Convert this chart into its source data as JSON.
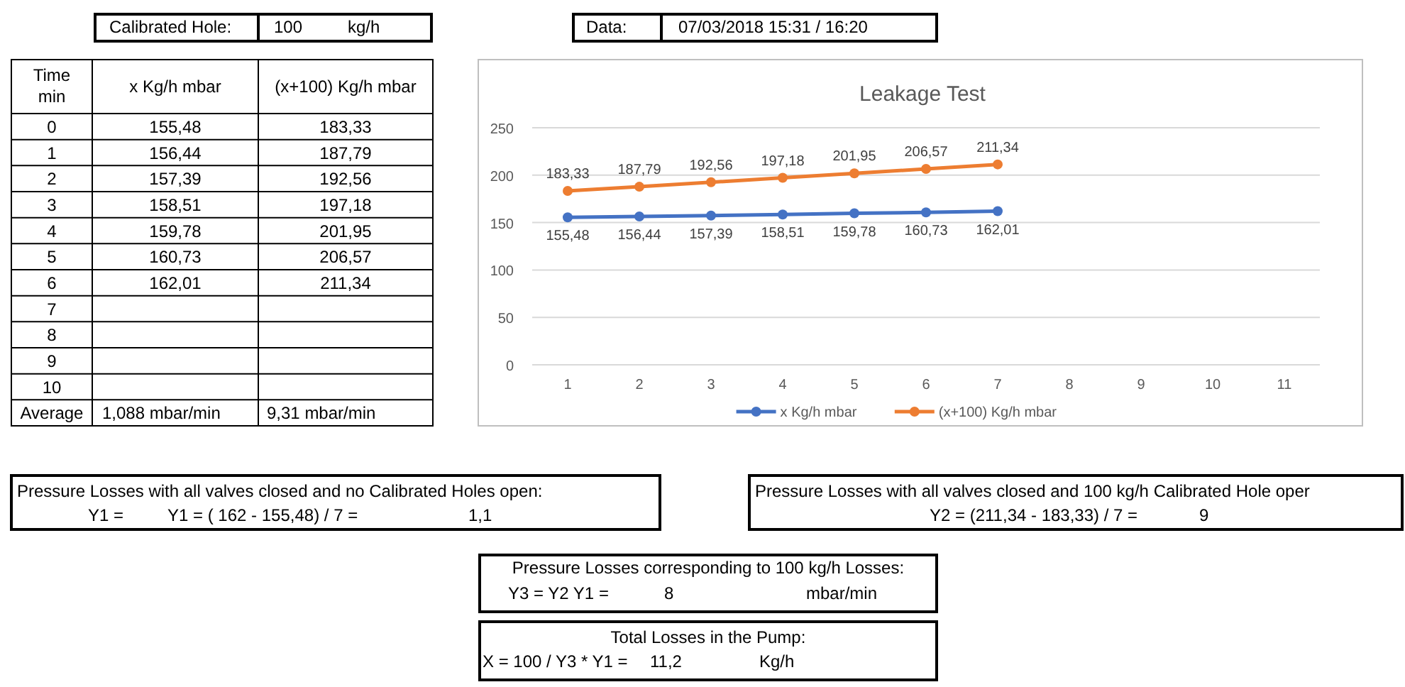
{
  "chart_data": {
    "type": "line",
    "title": "Leakage Test",
    "categories": [
      "1",
      "2",
      "3",
      "4",
      "5",
      "6",
      "7",
      "8",
      "9",
      "10",
      "11"
    ],
    "series": [
      {
        "name": "x Kg/h mbar",
        "color": "#4472c4",
        "values": [
          155.48,
          156.44,
          157.39,
          158.51,
          159.78,
          160.73,
          162.01,
          null,
          null,
          null,
          null
        ],
        "value_labels": [
          "155,48",
          "156,44",
          "157,39",
          "158,51",
          "159,78",
          "160,73",
          "162,01",
          null,
          null,
          null,
          null
        ]
      },
      {
        "name": "(x+100) Kg/h  mbar",
        "color": "#ed7d31",
        "values": [
          183.33,
          187.79,
          192.56,
          197.18,
          201.95,
          206.57,
          211.34,
          null,
          null,
          null,
          null
        ],
        "value_labels": [
          "183,33",
          "187,79",
          "192,56",
          "197,18",
          "201,95",
          "206,57",
          "211,34",
          null,
          null,
          null,
          null
        ]
      }
    ],
    "ylim": [
      0,
      250
    ],
    "yticks": [
      0,
      50,
      100,
      150,
      200,
      250
    ],
    "grid": "y",
    "legend": "bottom",
    "marker": "circle",
    "line_style": "solid",
    "annotations": [
      "Calibrated Hole:",
      "100",
      "kg/h",
      "Data:",
      "07/03/2018 15:31 / 16:20",
      "Time min",
      "x Kg/h mbar",
      "(x+100) Kg/h  mbar",
      "0",
      "1",
      "2",
      "3",
      "4",
      "5",
      "6",
      "7",
      "8",
      "9",
      "10",
      "Average",
      "1,088  mbar/min",
      "9,31    mbar/min",
      "Pressure Losses with all valves closed and no Calibrated Holes open:",
      "Y1 =",
      "Y1 = ( 162 - 155,48) / 7 =",
      "1,1",
      "Pressure Losses with all valves closed and 100 kg/h Calibrated Hole oper",
      "Y2 = (211,34 - 183,33) / 7 =",
      "9",
      "Pressure Losses corresponding to 100 kg/h Losses:",
      "Y3 = Y2 Y1 =",
      "8",
      "mbar/min",
      "Total Losses in the Pump:",
      "X = 100 / Y3 * Y1 =",
      "11,2",
      "Kg/h"
    ]
  }
}
